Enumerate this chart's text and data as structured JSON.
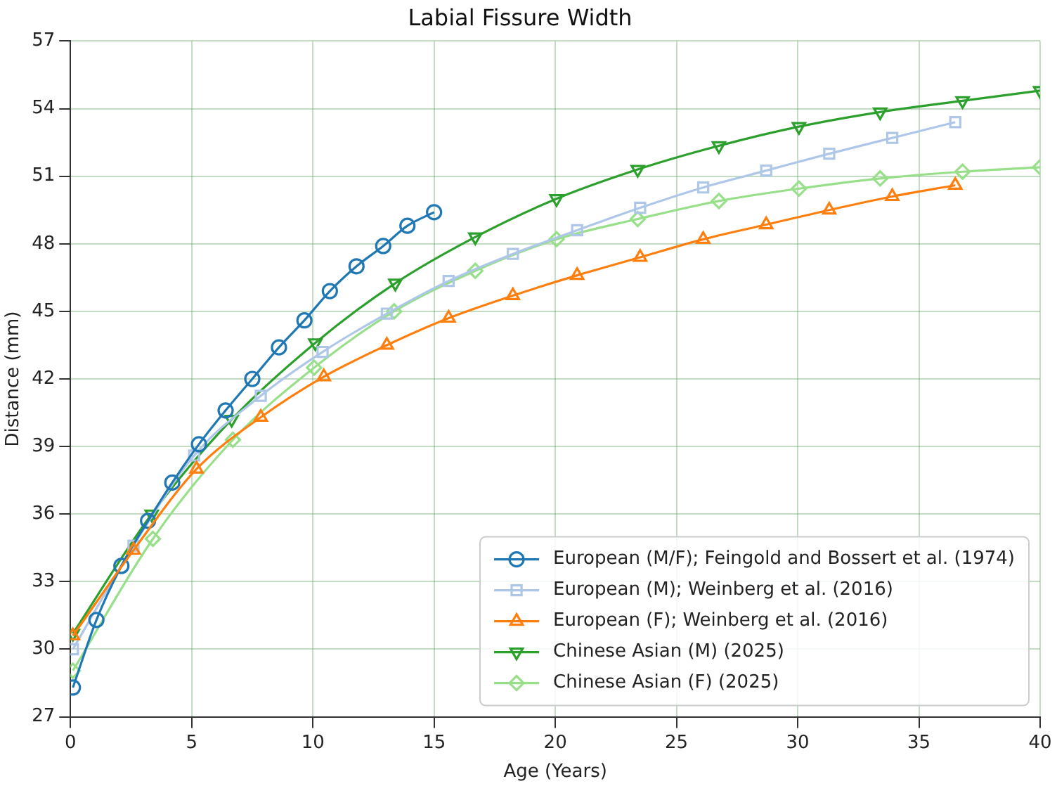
{
  "chart_data": {
    "type": "line",
    "title": "Labial Fissure Width",
    "xlabel": "Age (Years)",
    "ylabel": "Distance (mm)",
    "xlim": [
      0,
      40
    ],
    "xticks": [
      0,
      5,
      10,
      15,
      20,
      25,
      30,
      35,
      40
    ],
    "ylim": [
      27,
      57
    ],
    "yticks": [
      27,
      30,
      33,
      36,
      39,
      42,
      45,
      48,
      51,
      54,
      57
    ],
    "grid": true,
    "legend": "bottom right",
    "line_style": "solid",
    "series": [
      {
        "name": "European (M/F); Feingold and Bossert et al. (1974)",
        "color": "#1f77b4",
        "marker": "circle",
        "x": [
          0.1,
          1.07,
          2.1,
          3.2,
          4.2,
          5.3,
          6.4,
          7.5,
          8.6,
          9.65,
          10.7,
          11.8,
          12.9,
          13.9,
          15.0
        ],
        "values": [
          28.3,
          31.3,
          33.7,
          35.7,
          37.4,
          39.1,
          40.6,
          42.0,
          43.4,
          44.6,
          45.9,
          47.0,
          47.9,
          48.8,
          49.4
        ]
      },
      {
        "name": "European (M); Weinberg et al. (2016)",
        "color": "#aec7e8",
        "marker": "square",
        "x": [
          0.1,
          2.6,
          5.1,
          7.85,
          10.4,
          13.05,
          15.6,
          18.25,
          20.9,
          23.5,
          26.1,
          28.7,
          31.3,
          33.9,
          36.5
        ],
        "values": [
          30.0,
          34.6,
          38.6,
          41.25,
          43.2,
          44.9,
          46.35,
          47.55,
          48.6,
          49.6,
          50.5,
          51.25,
          52.0,
          52.7,
          53.4
        ]
      },
      {
        "name": "European (F); Weinberg et al. (2016)",
        "color": "#ff7f0e",
        "marker": "triangle",
        "x": [
          0.1,
          2.6,
          5.2,
          7.85,
          10.45,
          13.05,
          15.6,
          18.25,
          20.9,
          23.5,
          26.1,
          28.7,
          31.3,
          33.9,
          36.5
        ],
        "values": [
          30.6,
          34.4,
          38.0,
          40.3,
          42.1,
          43.5,
          44.7,
          45.7,
          46.6,
          47.4,
          48.2,
          48.85,
          49.5,
          50.1,
          50.6
        ]
      },
      {
        "name": "Chinese Asian (M) (2025)",
        "color": "#2ca02c",
        "marker": "triangle_down",
        "x": [
          0.1,
          3.35,
          6.65,
          10.1,
          13.4,
          16.7,
          20.05,
          23.4,
          26.75,
          30.05,
          33.4,
          36.8,
          40.0
        ],
        "values": [
          30.7,
          36.0,
          40.2,
          43.6,
          46.25,
          48.3,
          50.0,
          51.3,
          52.35,
          53.2,
          53.85,
          54.35,
          54.8
        ]
      },
      {
        "name": "Chinese Asian (F) (2025)",
        "color": "#98df8a",
        "marker": "diamond",
        "x": [
          0.1,
          3.4,
          6.7,
          10.05,
          13.35,
          16.7,
          20.05,
          23.4,
          26.75,
          30.05,
          33.4,
          36.8,
          40.0
        ],
        "values": [
          29.05,
          34.9,
          39.3,
          42.5,
          45.0,
          46.8,
          48.2,
          49.1,
          49.9,
          50.45,
          50.9,
          51.2,
          51.4
        ]
      }
    ]
  }
}
